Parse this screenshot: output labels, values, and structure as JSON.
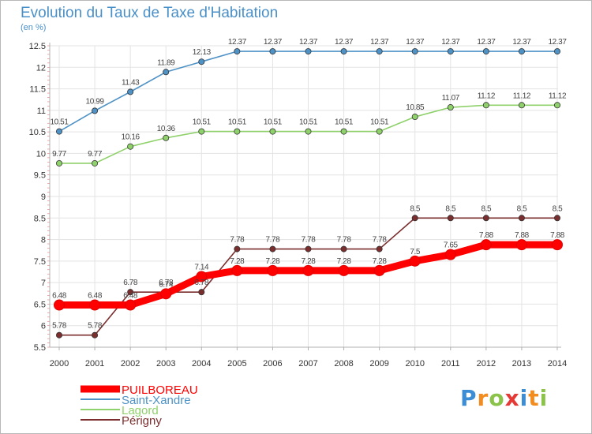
{
  "title": "Evolution du Taux de Taxe d'Habitation",
  "unit_label": "(en %)",
  "logo": {
    "letters": [
      "P",
      "r",
      "o",
      "x",
      "i",
      "t",
      "i"
    ],
    "colors": [
      "#3b8ed6",
      "#f28c1e",
      "#8bc34a",
      "#e53935",
      "#3b8ed6",
      "#f28c1e",
      "#8bc34a"
    ]
  },
  "colors": {
    "axis": "#b0b0b0",
    "grid": "#e3e3e3",
    "frame": "#b8b8b8"
  },
  "chart_data": {
    "type": "line",
    "title": "Evolution du Taux de Taxe d'Habitation",
    "ylabel": "(en %)",
    "xlabel": "",
    "ylim": [
      5.5,
      12.5
    ],
    "yticks": [
      "5.5",
      "6",
      "6.5",
      "7",
      "7.5",
      "8",
      "8.5",
      "9",
      "9.5",
      "10",
      "10.5",
      "11",
      "11.5",
      "12",
      "12.5"
    ],
    "categories": [
      "2000",
      "2001",
      "2002",
      "2003",
      "2004",
      "2005",
      "2006",
      "2007",
      "2008",
      "2009",
      "2010",
      "2011",
      "2012",
      "2013",
      "2014"
    ],
    "grid": true,
    "legend_position": "bottom-left",
    "series": [
      {
        "name": "Périgny",
        "color": "#7b2e2e",
        "values": [
          5.78,
          5.78,
          6.78,
          6.78,
          6.78,
          7.78,
          7.78,
          7.78,
          7.78,
          7.78,
          8.5,
          8.5,
          8.5,
          8.5,
          8.5
        ],
        "labels": [
          "5.78",
          "5.78",
          "6.78",
          "6.78",
          "6.78",
          "7.78",
          "7.78",
          "7.78",
          "7.78",
          "7.78",
          "8.5",
          "8.5",
          "8.5",
          "8.5",
          "8.5"
        ]
      },
      {
        "name": "Lagord",
        "color": "#8fd16a",
        "values": [
          9.77,
          9.77,
          10.16,
          10.36,
          10.51,
          10.51,
          10.51,
          10.51,
          10.51,
          10.51,
          10.85,
          11.07,
          11.12,
          11.12,
          11.12
        ],
        "labels": [
          "9.77",
          "9.77",
          "10.16",
          "10.36",
          "10.51",
          "10.51",
          "10.51",
          "10.51",
          "10.51",
          "10.51",
          "10.85",
          "11.07",
          "11.12",
          "11.12",
          "11.12"
        ]
      },
      {
        "name": "Saint-Xandre",
        "color": "#4f92c6",
        "values": [
          10.51,
          10.99,
          11.43,
          11.89,
          12.13,
          12.37,
          12.37,
          12.37,
          12.37,
          12.37,
          12.37,
          12.37,
          12.37,
          12.37,
          12.37
        ],
        "labels": [
          "10.51",
          "10.99",
          "11.43",
          "11.89",
          "12.13",
          "12.37",
          "12.37",
          "12.37",
          "12.37",
          "12.37",
          "12.37",
          "12.37",
          "12.37",
          "12.37",
          "12.37"
        ]
      },
      {
        "name": "PUILBOREAU",
        "color": "#ff0000",
        "values": [
          6.48,
          6.48,
          6.48,
          6.74,
          7.14,
          7.28,
          7.28,
          7.28,
          7.28,
          7.28,
          7.5,
          7.65,
          7.88,
          7.88,
          7.88
        ],
        "labels": [
          "6.48",
          "6.48",
          "6.48",
          "6.74",
          "7.14",
          "7.28",
          "7.28",
          "7.28",
          "7.28",
          "7.28",
          "7.5",
          "7.65",
          "7.88",
          "7.88",
          "7.88"
        ]
      }
    ],
    "legend": [
      "PUILBOREAU",
      "Saint-Xandre",
      "Lagord",
      "Périgny"
    ]
  }
}
